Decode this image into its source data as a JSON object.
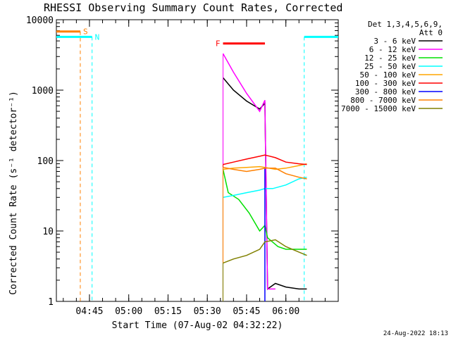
{
  "chart_data": {
    "type": "line",
    "title": "RHESSI Observing Summary Count Rates, Corrected",
    "xlabel": "Start Time (07-Aug-02 04:32:22)",
    "ylabel": "Corrected Count Rate (s⁻¹ detector⁻¹)",
    "y_scale": "log",
    "ylim": [
      1,
      10000
    ],
    "xlim": [
      "04:32:22",
      "06:20:00"
    ],
    "y_tick_labels": [
      "1",
      "10",
      "100",
      "1000",
      "10000"
    ],
    "x_tick_labels": [
      "04:45",
      "05:00",
      "05:15",
      "05:30",
      "05:45",
      "06:00"
    ],
    "legend_header": [
      "Det 1,3,4,5,6,9,",
      "Att 0"
    ],
    "series": [
      {
        "name": "3 - 6 keV",
        "color": "#000000",
        "x": [
          "05:36",
          "05:40",
          "05:45",
          "05:50",
          "05:52",
          "05:53",
          "05:56",
          "06:00",
          "06:05",
          "06:08"
        ],
        "y": [
          1500,
          1000,
          700,
          540,
          650,
          1.5,
          1.8,
          1.6,
          1.5,
          1.5
        ]
      },
      {
        "name": "6 - 12 keV",
        "color": "#ff00ff",
        "x": [
          "05:36",
          "05:40",
          "05:45",
          "05:50",
          "05:52",
          "05:53",
          "05:56"
        ],
        "y": [
          3300,
          1800,
          900,
          500,
          720,
          1.5,
          1.5
        ]
      },
      {
        "name": "12 - 25 keV",
        "color": "#00e000",
        "x": [
          "05:36",
          "05:38",
          "05:42",
          "05:46",
          "05:50",
          "05:52",
          "05:53",
          "05:57",
          "06:00",
          "06:05",
          "06:08"
        ],
        "y": [
          75,
          35,
          28,
          18,
          10,
          12,
          8,
          6,
          5.5,
          5.5,
          5.5
        ]
      },
      {
        "name": "25 - 50 keV",
        "color": "#00ffff",
        "x": [
          "05:36",
          "05:40",
          "05:45",
          "05:50",
          "05:52",
          "05:55",
          "06:00",
          "06:05",
          "06:08"
        ],
        "y": [
          30,
          32,
          35,
          38,
          40,
          40,
          45,
          55,
          58
        ]
      },
      {
        "name": "50 - 100 keV",
        "color": "#ffa500",
        "x": [
          "05:36",
          "05:40",
          "05:45",
          "05:50",
          "05:52",
          "05:56",
          "06:00",
          "06:05",
          "06:08"
        ],
        "y": [
          75,
          78,
          80,
          82,
          80,
          75,
          78,
          85,
          90
        ]
      },
      {
        "name": "100 - 300 keV",
        "color": "#ff0000",
        "x": [
          "05:36",
          "05:40",
          "05:45",
          "05:50",
          "05:52",
          "05:56",
          "06:00",
          "06:05",
          "06:08"
        ],
        "y": [
          88,
          95,
          105,
          115,
          120,
          110,
          95,
          90,
          88
        ]
      },
      {
        "name": "300 - 800 keV",
        "color": "#0000ff",
        "x": [
          "05:52",
          "05:52"
        ],
        "y": [
          1,
          80
        ]
      },
      {
        "name": "800 - 7000 keV",
        "color": "#ff8000",
        "x": [
          "05:36",
          "05:40",
          "05:45",
          "05:50",
          "05:52",
          "05:56",
          "06:00",
          "06:05",
          "06:08"
        ],
        "y": [
          80,
          75,
          70,
          75,
          78,
          78,
          65,
          58,
          55
        ]
      },
      {
        "name": "7000 - 15000 keV",
        "color": "#808000",
        "x": [
          "05:36",
          "05:40",
          "05:45",
          "05:50",
          "05:52",
          "05:56",
          "06:00",
          "06:05",
          "06:08"
        ],
        "y": [
          3.5,
          4,
          4.5,
          5.5,
          7,
          7.5,
          6,
          5,
          4.5
        ]
      }
    ],
    "annotations": [
      {
        "label": "S",
        "color": "#ff8000",
        "x_start": "04:32:22",
        "x_end": "04:41:30",
        "y": 6800,
        "line_x": "04:41:30"
      },
      {
        "label": "N",
        "color": "#00ffff",
        "x_start": "04:32:22",
        "x_end": "04:46:00",
        "y": 5700,
        "line_x": "04:46:00"
      },
      {
        "label": "F",
        "color": "#ff0000",
        "x_start": "05:36",
        "x_end": "05:52",
        "y": 4600
      },
      {
        "label": "",
        "color": "#00ffff",
        "x_start": "06:07",
        "x_end": "06:20",
        "y": 5700,
        "line_x": "06:07"
      }
    ],
    "grid": false,
    "legend_position": "right"
  },
  "footer": {
    "date": "24-Aug-2022 18:13"
  }
}
